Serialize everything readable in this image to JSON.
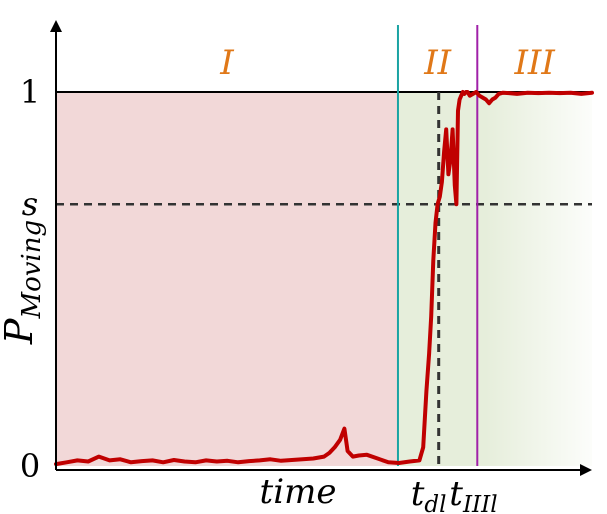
{
  "chart_data": {
    "type": "line",
    "title": "",
    "xlabel": "time",
    "ylabel_main": "P",
    "ylabel_sub": "Moving",
    "ylim": [
      0,
      1.2
    ],
    "xlim": [
      0,
      100
    ],
    "y_ticks": [
      {
        "value": 0,
        "label": "0"
      },
      {
        "value": 0.7,
        "label": "s"
      },
      {
        "value": 1,
        "label": "1"
      }
    ],
    "threshold": 0.7,
    "phases": [
      {
        "label": "I",
        "x_start": 0,
        "x_end": 63.8,
        "color": "#f2d8d8"
      },
      {
        "label": "II",
        "x_start": 63.8,
        "x_end": 78.6,
        "color": "#e6eedb"
      },
      {
        "label": "III",
        "x_start": 78.6,
        "x_end": 100,
        "color": "#e6eedb"
      }
    ],
    "markers": [
      {
        "x": 71.4,
        "label_main": "t",
        "label_sub": "dl",
        "style": "dashed",
        "color": "#333333"
      },
      {
        "x": 63.8,
        "label_main": "",
        "label_sub": "",
        "style": "solid",
        "color": "#1aa3a3"
      },
      {
        "x": 78.6,
        "label_main": "t",
        "label_sub": "IIIl",
        "style": "solid",
        "color": "#a020a8"
      }
    ],
    "colors": {
      "line": "#c00000",
      "phase_label": "#e07818",
      "axis": "#000000"
    },
    "series": [
      {
        "x": [
          0,
          2,
          4,
          6,
          8,
          10,
          12,
          14,
          16,
          18,
          20,
          22,
          24,
          26,
          28,
          30,
          32,
          34,
          36,
          38,
          40,
          42,
          44,
          46,
          48,
          50,
          51,
          52,
          53,
          53.8,
          54.4,
          55.4,
          56.5,
          58,
          60,
          62,
          64,
          66,
          67.8,
          68.5,
          69.1,
          69.6,
          70.0,
          70.4,
          70.8,
          71.2,
          71.6,
          72.0,
          72.4,
          72.8,
          73.2,
          73.6,
          74.0,
          74.4,
          74.7,
          75.0,
          75.3,
          75.6,
          75.9,
          76.2,
          76.5,
          76.8,
          77.2,
          77.8,
          78.4,
          79.0,
          79.6,
          80.2,
          80.8,
          81.4,
          82.0,
          82.6,
          83.4,
          84.5,
          86,
          88,
          90,
          92,
          94,
          96,
          98,
          100
        ],
        "y": [
          0.005,
          0.01,
          0.015,
          0.012,
          0.025,
          0.015,
          0.018,
          0.01,
          0.013,
          0.015,
          0.01,
          0.016,
          0.012,
          0.01,
          0.015,
          0.012,
          0.014,
          0.01,
          0.013,
          0.015,
          0.018,
          0.014,
          0.016,
          0.018,
          0.02,
          0.025,
          0.035,
          0.05,
          0.07,
          0.1,
          0.04,
          0.025,
          0.028,
          0.03,
          0.02,
          0.01,
          0.008,
          0.012,
          0.015,
          0.05,
          0.2,
          0.3,
          0.4,
          0.55,
          0.65,
          0.7,
          0.72,
          0.76,
          0.84,
          0.9,
          0.78,
          0.82,
          0.9,
          0.75,
          0.7,
          0.95,
          0.98,
          0.99,
          1.0,
          0.995,
          1.0,
          1.0,
          0.99,
          0.995,
          1.0,
          0.99,
          0.985,
          0.98,
          0.97,
          0.98,
          0.985,
          0.995,
          0.998,
          0.997,
          0.995,
          0.998,
          0.997,
          0.998,
          0.997,
          0.998,
          0.995,
          0.998
        ]
      }
    ]
  }
}
